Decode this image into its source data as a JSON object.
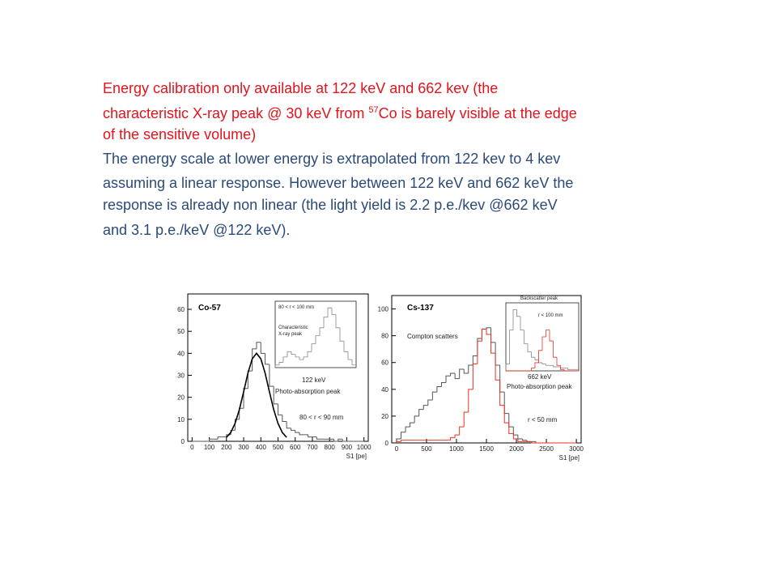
{
  "text": {
    "paragraph1": {
      "line1": "Energy calibration only available at 122 keV and 662 kev (the",
      "line2_start": "characteristic X-ray peak @ 30 keV from ",
      "line2_sup": "57",
      "line2_end": "Co is barely visible at the edge",
      "line3": "of the sensitive volume)"
    },
    "paragraph2": {
      "lines": [
        "The energy scale at lower energy is extrapolated from 122 kev to 4 kev",
        "assuming a linear response. However between 122 keV and 662 keV the",
        "response is already non linear (the light yield is 2.2 p.e./kev @662 keV",
        "and 3.1 p.e./keV @122 keV)."
      ]
    }
  },
  "chart_data": [
    {
      "type": "histogram",
      "title": "Co-57",
      "xlabel": "S1 [pe]",
      "xlim": [
        -25,
        1025
      ],
      "xticks": [
        0,
        100,
        200,
        300,
        400,
        500,
        600,
        700,
        800,
        900,
        1000
      ],
      "ylim": [
        0,
        67
      ],
      "yticks": [
        0,
        10,
        20,
        30,
        40,
        50,
        60
      ],
      "bins": [
        0,
        25,
        50,
        75,
        100,
        125,
        150,
        175,
        200,
        225,
        250,
        275,
        300,
        325,
        350,
        375,
        400,
        425,
        450,
        475,
        500,
        525,
        550,
        575,
        600,
        625,
        650,
        675,
        700,
        725,
        750,
        775,
        800,
        825,
        850,
        875,
        900,
        925,
        950,
        975,
        1000
      ],
      "series": [
        {
          "color": "#555555",
          "values": [
            0,
            0,
            0,
            0,
            1,
            1,
            2,
            2,
            3,
            5,
            10,
            15,
            24,
            32,
            42,
            45,
            40,
            35,
            25,
            17,
            12,
            9,
            6,
            5,
            4,
            3,
            3,
            2,
            2,
            1,
            1,
            1,
            1,
            0,
            1,
            0,
            0,
            0,
            0,
            0
          ]
        }
      ],
      "fit": {
        "color": "#000000",
        "x": [
          200,
          225,
          250,
          275,
          300,
          325,
          350,
          375,
          400,
          425,
          450,
          475,
          500,
          525,
          550
        ],
        "values": [
          1.8,
          4.0,
          8.1,
          14.4,
          22.5,
          31,
          37.5,
          40,
          37.5,
          31,
          22.5,
          14.4,
          8.1,
          4.0,
          1.8
        ]
      },
      "annotations": [
        "122 keV",
        "Photo-absorption peak",
        "80 < r < 90 mm"
      ],
      "inset": {
        "labels": [
          "80 < r < 100 mm",
          "Characteristic",
          "X-ray peak"
        ],
        "ylim": [
          0,
          50
        ],
        "series": [
          {
            "color": "#888888",
            "values": [
              2,
              4,
              8,
              12,
              10,
              8,
              6,
              8,
              12,
              18,
              24,
              30,
              38,
              45,
              40,
              30,
              20,
              12,
              6,
              2
            ]
          }
        ]
      }
    },
    {
      "type": "histogram",
      "title": "Cs-137",
      "xlabel": "S1 [pe]",
      "xlim": [
        -80,
        3080
      ],
      "xticks": [
        0,
        500,
        1000,
        1500,
        2000,
        2500,
        3000
      ],
      "ylim": [
        0,
        110
      ],
      "yticks": [
        0,
        20,
        40,
        60,
        80,
        100
      ],
      "bins": [
        0,
        75,
        150,
        225,
        300,
        375,
        450,
        525,
        600,
        675,
        750,
        825,
        900,
        975,
        1050,
        1125,
        1200,
        1275,
        1350,
        1425,
        1500,
        1575,
        1650,
        1725,
        1800,
        1875,
        1950,
        2025,
        2100,
        2175,
        2250,
        2325,
        2400,
        2475,
        2550,
        2625,
        2700,
        2775,
        2850,
        2925,
        3000
      ],
      "series": [
        {
          "color": "#555555",
          "values": [
            3,
            8,
            12,
            15,
            20,
            25,
            28,
            32,
            38,
            42,
            45,
            50,
            52,
            48,
            55,
            52,
            58,
            65,
            78,
            85,
            86,
            75,
            58,
            38,
            22,
            12,
            6,
            3,
            2,
            1,
            1,
            0,
            0,
            0,
            0,
            0,
            0,
            0,
            0,
            0
          ]
        },
        {
          "color": "#e8321e",
          "values": [
            1,
            2,
            2,
            2,
            2,
            2,
            2,
            2,
            2,
            2,
            2,
            2,
            4,
            6,
            12,
            23,
            40,
            59,
            76,
            85,
            81,
            67,
            47,
            28,
            15,
            7,
            3,
            1,
            1,
            1,
            0,
            0,
            0,
            0,
            0,
            0,
            0,
            0,
            0,
            0
          ]
        }
      ],
      "annotations": [
        "Compton scatters",
        "662 keV",
        "Photo-absorption peak",
        "r < 50 mm"
      ],
      "inset": {
        "labels": [
          "Backscatter peak",
          "r < 100 mm"
        ],
        "ylim": [
          0,
          50
        ],
        "series": [
          {
            "color": "#888888",
            "values": [
              5,
              30,
              45,
              40,
              30,
              20,
              14,
              10,
              8,
              6,
              5,
              4,
              4,
              3,
              3,
              2,
              2,
              1,
              1,
              1
            ]
          },
          {
            "color": "#e8321e",
            "values": [
              0,
              0,
              0,
              0,
              0,
              0,
              0,
              2,
              6,
              15,
              25,
              30,
              22,
              10,
              4,
              1,
              0,
              0,
              0,
              0
            ]
          }
        ]
      }
    }
  ]
}
